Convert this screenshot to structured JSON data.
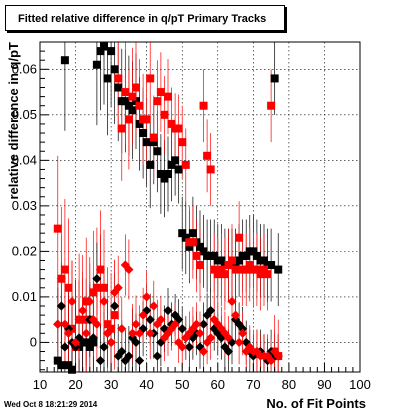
{
  "title": "Fitted relative difference in q/pT Primary Tracks",
  "timestamp": "Wed Oct  8 18:21:29 2014",
  "colors": {
    "series_black": "#000000",
    "series_red": "#ff0000",
    "grid": "#000000"
  },
  "chart_data": {
    "type": "scatter",
    "title": "Fitted relative difference in q/pT Primary Tracks",
    "xlabel": "No. of Fit Points",
    "ylabel": "relative difference in q/pT",
    "xlim": [
      10,
      100
    ],
    "ylim": [
      -0.0065,
      0.066
    ],
    "xticks": [
      10,
      20,
      30,
      40,
      50,
      60,
      70,
      80,
      90,
      100
    ],
    "xtick_labels": [
      "10",
      "20",
      "30",
      "40",
      "50",
      "60",
      "70",
      "80",
      "90",
      "100"
    ],
    "yticks": [
      0,
      0.01,
      0.02,
      0.03,
      0.04,
      0.05,
      0.06
    ],
    "ytick_labels": [
      "0",
      "0.01",
      "0.02",
      "0.03",
      "0.04",
      "0.05",
      "0.06"
    ],
    "grid": true,
    "legend": "none",
    "series": [
      {
        "marker": "square",
        "color": "#000000",
        "x": [
          15,
          16,
          17,
          18,
          19,
          20,
          21,
          22,
          23,
          24,
          25,
          26,
          27,
          28,
          29,
          30,
          31,
          32,
          33,
          34,
          35,
          36,
          37,
          38,
          39,
          40,
          41,
          42,
          43,
          44,
          45,
          46,
          47,
          48,
          49,
          50,
          51,
          52,
          53,
          54,
          55,
          56,
          57,
          58,
          59,
          60,
          61,
          62,
          63,
          64,
          65,
          66,
          67,
          68,
          69,
          70,
          71,
          72,
          73,
          74,
          75,
          76,
          77
        ],
        "y": [
          -0.004,
          -0.005,
          0.062,
          -0.005,
          -0.006,
          -0.001,
          -0.001,
          0.0,
          0.0,
          -0.001,
          0.0,
          0.061,
          0.064,
          0.065,
          0.058,
          0.064,
          0.06,
          0.056,
          0.053,
          0.053,
          0.052,
          0.051,
          0.053,
          0.048,
          0.046,
          0.044,
          0.039,
          0.044,
          0.042,
          0.037,
          0.036,
          0.037,
          0.039,
          0.04,
          0.038,
          0.024,
          0.023,
          0.021,
          0.024,
          0.022,
          0.021,
          0.02,
          0.019,
          0.019,
          0.019,
          0.018,
          0.018,
          0.017,
          0.017,
          0.017,
          0.017,
          0.018,
          0.019,
          0.019,
          0.02,
          0.02,
          0.019,
          0.018,
          0.018,
          0.017,
          0.017,
          0.058,
          0.016
        ]
      },
      {
        "marker": "square",
        "color": "#ff0000",
        "x": [
          15,
          16,
          17,
          18,
          19,
          20,
          21,
          22,
          23,
          24,
          25,
          26,
          27,
          28,
          29,
          30,
          31,
          32,
          33,
          34,
          35,
          36,
          37,
          38,
          39,
          40,
          41,
          42,
          43,
          44,
          45,
          46,
          47,
          48,
          49,
          50,
          51,
          52,
          53,
          54,
          55,
          56,
          57,
          58,
          59,
          60,
          61,
          62,
          63,
          64,
          65,
          66,
          67,
          68,
          69,
          70,
          71,
          72,
          73,
          74,
          75,
          76,
          77
        ],
        "y": [
          0.025,
          0.014,
          0.016,
          0.012,
          0.003,
          -0.001,
          0.005,
          0.005,
          0.009,
          0.005,
          0.011,
          0.012,
          0.016,
          0.012,
          0.004,
          0.003,
          0.006,
          0.058,
          0.047,
          0.055,
          0.049,
          0.054,
          0.056,
          0.052,
          0.049,
          0.049,
          0.058,
          0.045,
          0.053,
          0.055,
          0.05,
          0.054,
          0.048,
          0.047,
          0.047,
          0.044,
          0.039,
          0.022,
          0.022,
          0.019,
          0.017,
          0.052,
          0.041,
          0.038,
          0.016,
          0.015,
          0.016,
          0.015,
          0.017,
          0.018,
          0.016,
          0.023,
          0.016,
          0.016,
          0.017,
          0.016,
          0.016,
          0.015,
          0.016,
          0.015,
          0.052,
          -0.002,
          -0.003
        ]
      },
      {
        "marker": "diamond",
        "color": "#000000",
        "x": [
          15,
          16,
          17,
          18,
          19,
          20,
          21,
          22,
          23,
          24,
          25,
          26,
          27,
          28,
          29,
          30,
          31,
          32,
          33,
          34,
          35,
          36,
          37,
          38,
          39,
          40,
          41,
          42,
          43,
          44,
          45,
          46,
          47,
          48,
          49,
          50,
          51,
          52,
          53,
          54,
          55,
          56,
          57,
          58,
          59,
          60,
          61,
          62,
          63,
          64,
          65,
          66,
          67,
          68,
          69,
          70,
          71,
          72,
          73,
          74,
          75,
          76,
          77
        ],
        "y": [
          0.004,
          0.008,
          -0.001,
          0.003,
          0.0,
          -0.001,
          0.001,
          0.0,
          0.0,
          0.005,
          0.001,
          0.014,
          -0.004,
          -0.001,
          0.002,
          0.0,
          0.008,
          -0.003,
          -0.002,
          -0.004,
          -0.003,
          0.001,
          0.0,
          -0.004,
          0.003,
          0.007,
          0.005,
          0.002,
          -0.003,
          0.0,
          0.003,
          0.007,
          0.004,
          0.006,
          0.005,
          0.003,
          0.001,
          -0.001,
          0.001,
          0.002,
          -0.001,
          0.004,
          0.006,
          0.007,
          0.003,
          0.002,
          0.001,
          -0.001,
          -0.002,
          0.0,
          0.005,
          0.004,
          0.003,
          0.0,
          -0.002,
          -0.003,
          -0.002,
          -0.002,
          -0.003,
          -0.004,
          -0.002,
          -0.003,
          -0.003
        ]
      },
      {
        "marker": "diamond",
        "color": "#ff0000",
        "x": [
          15,
          16,
          17,
          18,
          19,
          20,
          21,
          22,
          23,
          24,
          25,
          26,
          27,
          28,
          29,
          30,
          31,
          32,
          33,
          34,
          35,
          36,
          37,
          38,
          39,
          40,
          41,
          42,
          43,
          44,
          45,
          46,
          47,
          48,
          49,
          50,
          51,
          52,
          53,
          54,
          55,
          56,
          57,
          58,
          59,
          60,
          61,
          62,
          63,
          64,
          65,
          66,
          67,
          68,
          69,
          70,
          71,
          72,
          73,
          74,
          75,
          76,
          77
        ],
        "y": [
          0.004,
          0.014,
          0.004,
          0.002,
          0.009,
          0.0,
          0.005,
          0.007,
          0.002,
          0.009,
          0.005,
          0.004,
          0.016,
          0.009,
          0.002,
          0.0,
          0.011,
          0.012,
          0.003,
          0.017,
          0.016,
          0.002,
          0.004,
          0.002,
          0.006,
          0.01,
          0.002,
          0.008,
          0.004,
          0.005,
          0.001,
          0.002,
          0.003,
          0.004,
          0.0,
          -0.001,
          0.001,
          0.002,
          0.003,
          0.004,
          0.002,
          -0.002,
          0.0,
          0.001,
          0.005,
          0.004,
          0.003,
          0.002,
          0.001,
          0.009,
          0.006,
          0.0,
          0.002,
          -0.002,
          -0.001,
          -0.002,
          -0.002,
          -0.003,
          -0.003,
          -0.003,
          -0.004,
          -0.002,
          -0.003
        ]
      }
    ]
  }
}
